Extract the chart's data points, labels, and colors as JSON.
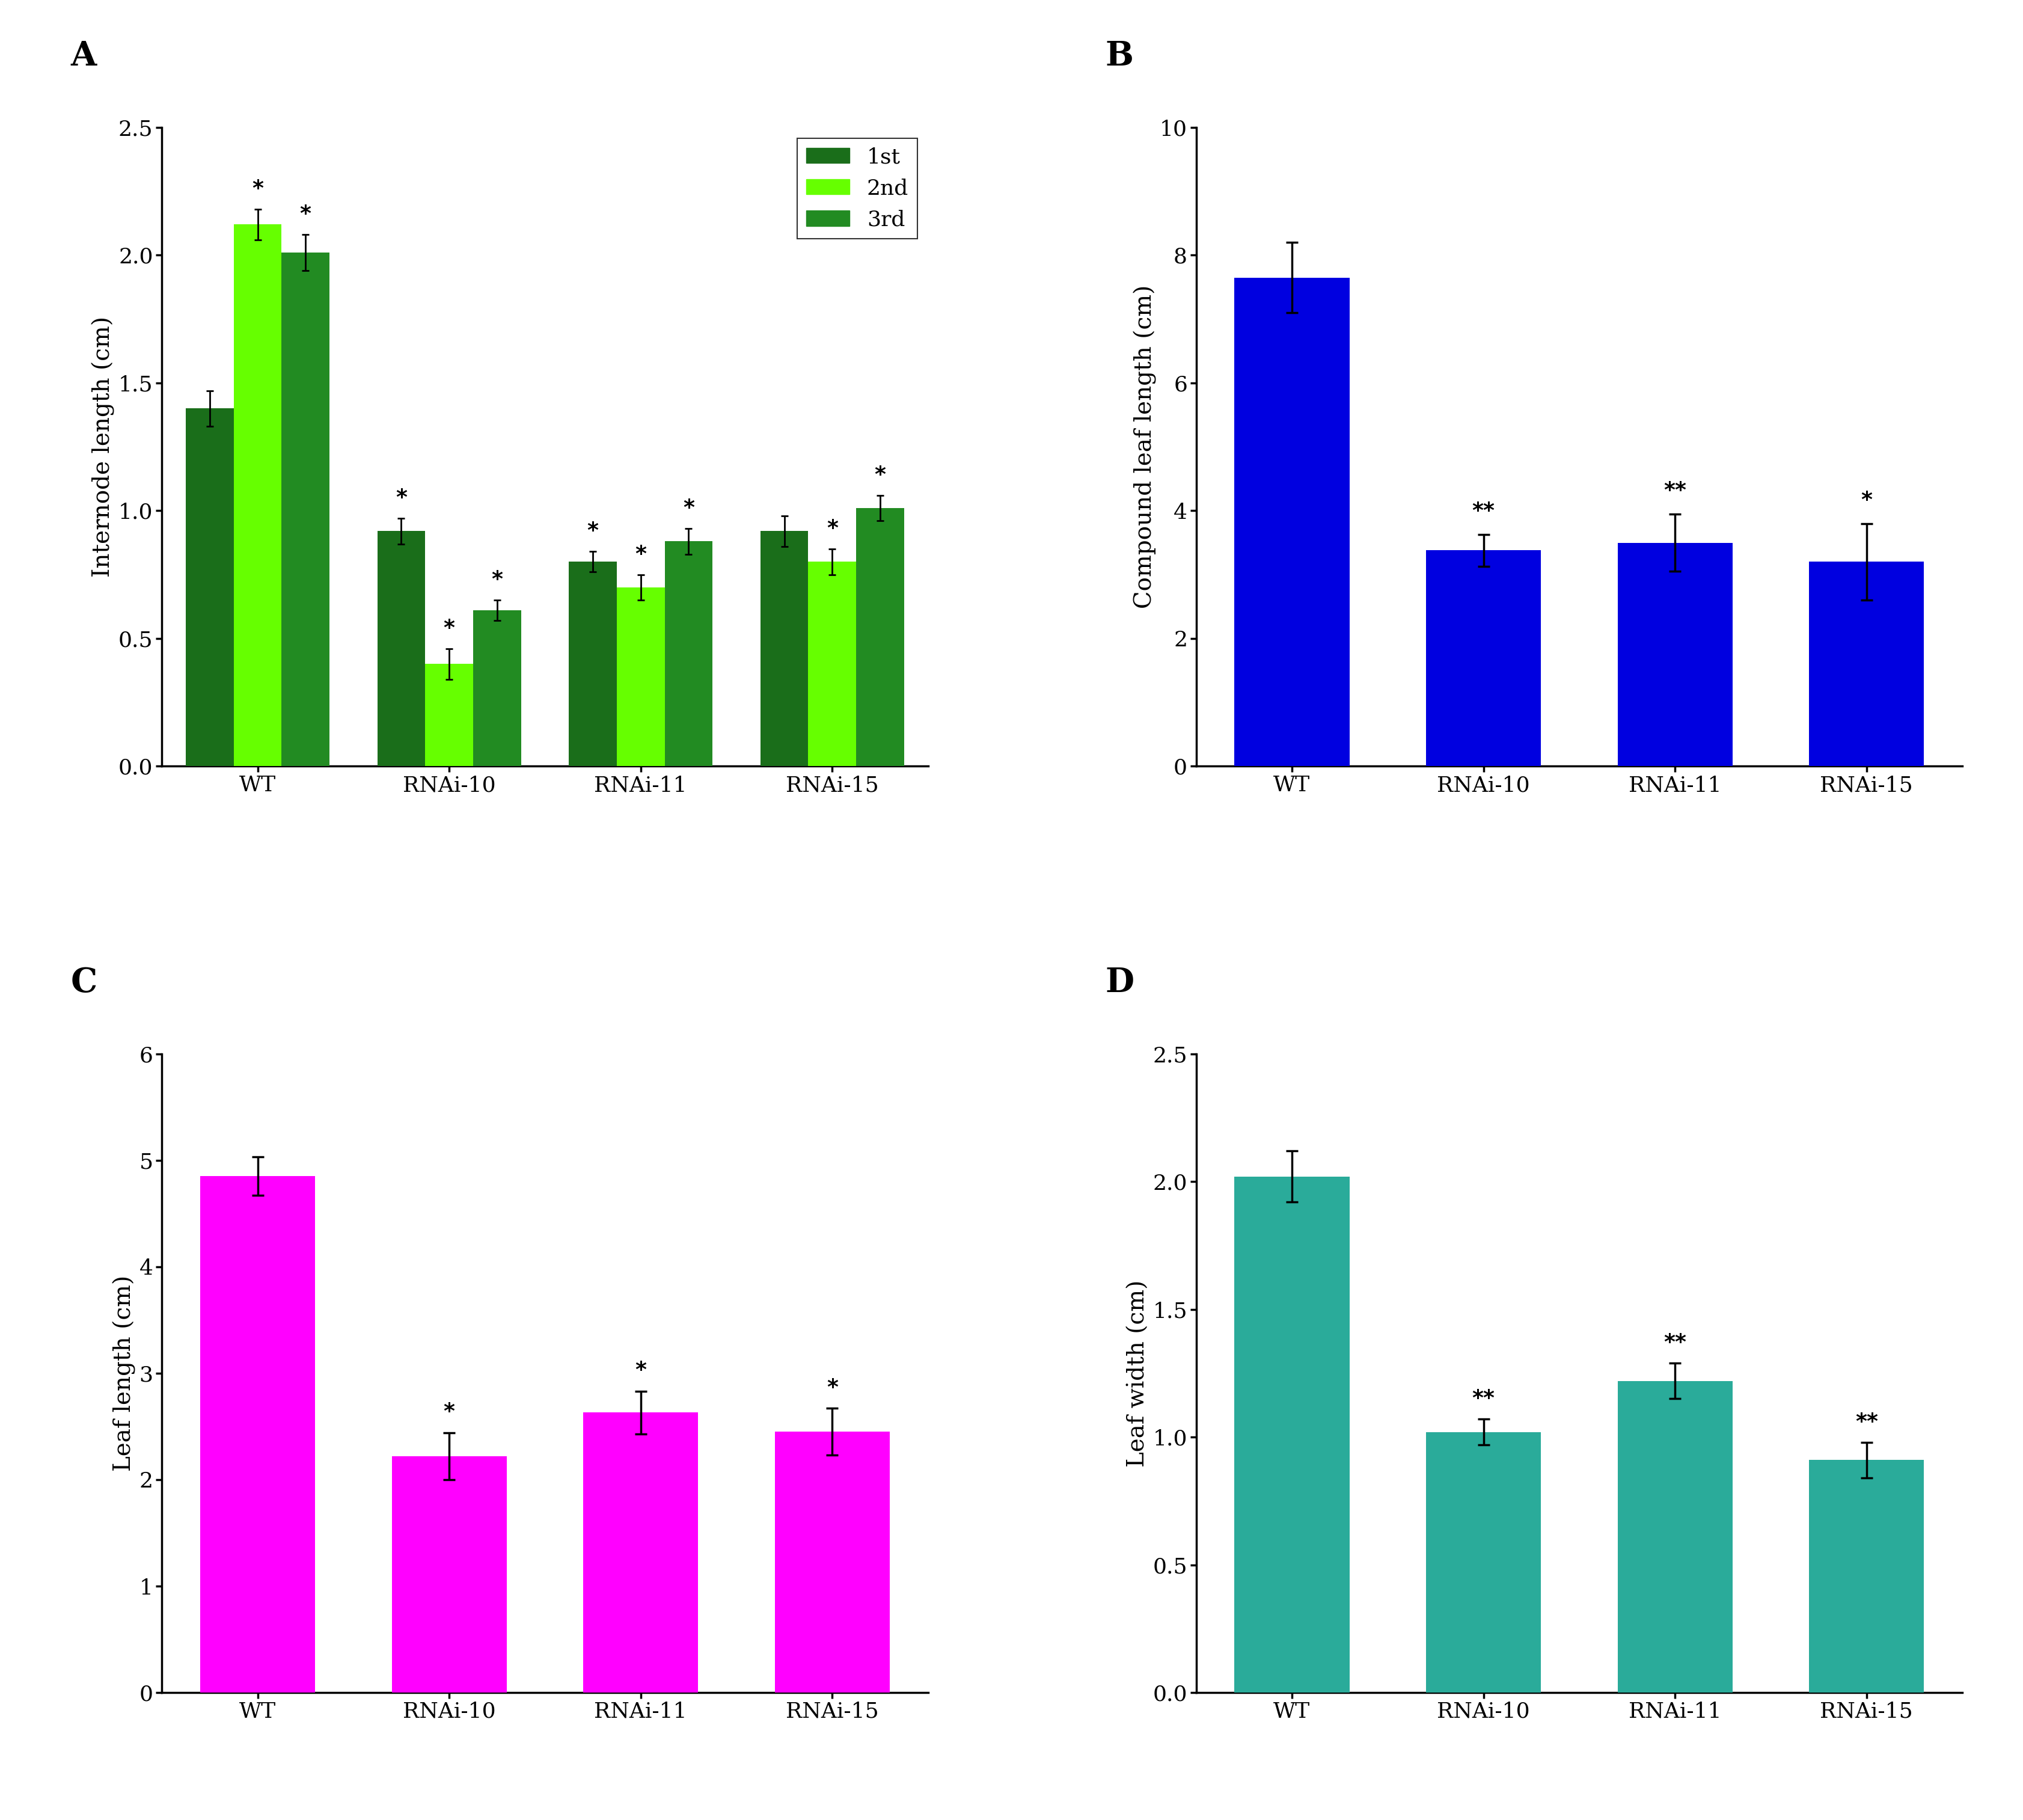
{
  "panel_A": {
    "label": "A",
    "categories": [
      "WT",
      "RNAi-10",
      "RNAi-11",
      "RNAi-15"
    ],
    "series": {
      "1st": {
        "values": [
          1.4,
          0.92,
          0.8,
          0.92
        ],
        "errors": [
          0.07,
          0.05,
          0.04,
          0.06
        ],
        "color": "#1a6e1a",
        "sig": [
          "",
          "*",
          "*",
          ""
        ]
      },
      "2nd": {
        "values": [
          2.12,
          0.4,
          0.7,
          0.8
        ],
        "errors": [
          0.06,
          0.06,
          0.05,
          0.05
        ],
        "color": "#66ff00",
        "sig": [
          "*",
          "*",
          "*",
          "*"
        ]
      },
      "3rd": {
        "values": [
          2.01,
          0.61,
          0.88,
          1.01
        ],
        "errors": [
          0.07,
          0.04,
          0.05,
          0.05
        ],
        "color": "#228b22",
        "sig": [
          "*",
          "*",
          "*",
          "*"
        ]
      }
    },
    "ylabel": "Internode length (cm)",
    "ylim": [
      0,
      2.5
    ],
    "yticks": [
      0.0,
      0.5,
      1.0,
      1.5,
      2.0,
      2.5
    ],
    "legend_labels": [
      "1st",
      "2nd",
      "3rd"
    ],
    "legend_colors": [
      "#1a6e1a",
      "#66ff00",
      "#228b22"
    ]
  },
  "panel_B": {
    "label": "B",
    "categories": [
      "WT",
      "RNAi-10",
      "RNAi-11",
      "RNAi-15"
    ],
    "values": [
      7.65,
      3.38,
      3.5,
      3.2
    ],
    "errors": [
      0.55,
      0.25,
      0.45,
      0.6
    ],
    "color": "#0000e0",
    "ylabel": "Compound leaf length (cm)",
    "ylim": [
      0,
      10
    ],
    "yticks": [
      0,
      2,
      4,
      6,
      8,
      10
    ],
    "sig": [
      "",
      "**",
      "**",
      "*"
    ]
  },
  "panel_C": {
    "label": "C",
    "categories": [
      "WT",
      "RNAi-10",
      "RNAi-11",
      "RNAi-15"
    ],
    "values": [
      4.85,
      2.22,
      2.63,
      2.45
    ],
    "errors": [
      0.18,
      0.22,
      0.2,
      0.22
    ],
    "color": "#ff00ff",
    "ylabel": "Leaf length (cm)",
    "ylim": [
      0,
      6
    ],
    "yticks": [
      0,
      1,
      2,
      3,
      4,
      5,
      6
    ],
    "sig": [
      "",
      "*",
      "*",
      "*"
    ]
  },
  "panel_D": {
    "label": "D",
    "categories": [
      "WT",
      "RNAi-10",
      "RNAi-11",
      "RNAi-15"
    ],
    "values": [
      2.02,
      1.02,
      1.22,
      0.91
    ],
    "errors": [
      0.1,
      0.05,
      0.07,
      0.07
    ],
    "color": "#2aab9a",
    "ylabel": "Leaf width (cm)",
    "ylim": [
      0,
      2.5
    ],
    "yticks": [
      0.0,
      0.5,
      1.0,
      1.5,
      2.0,
      2.5
    ],
    "sig": [
      "",
      "**",
      "**",
      "**"
    ]
  },
  "background_color": "#ffffff",
  "tick_fontsize": 26,
  "label_fontsize": 28,
  "panel_label_fontsize": 40,
  "sig_fontsize": 26,
  "legend_fontsize": 26
}
